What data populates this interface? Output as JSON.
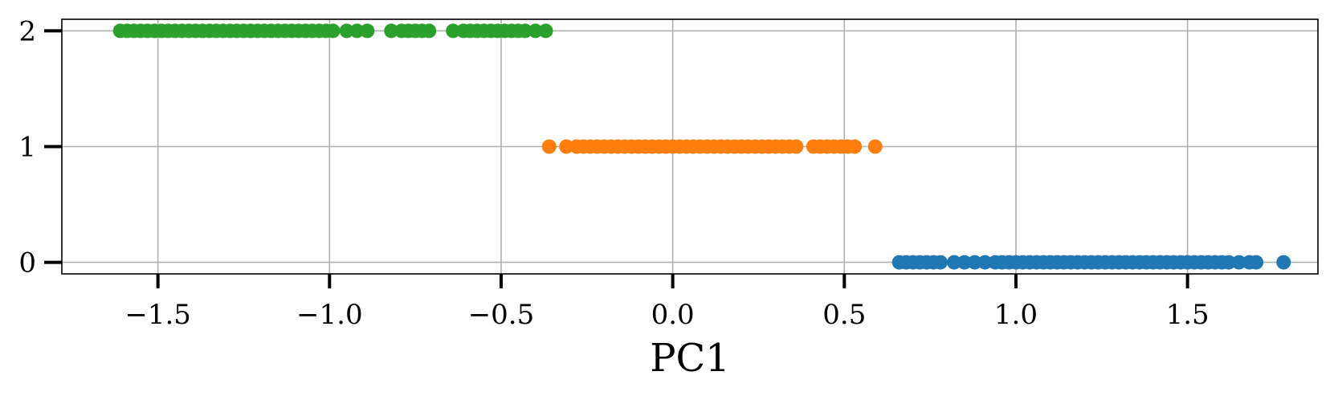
{
  "chart_data": {
    "type": "scatter",
    "title": "",
    "xlabel": "PC1",
    "ylabel": "",
    "xlim": [
      -1.78,
      1.88
    ],
    "ylim": [
      -0.1,
      2.1
    ],
    "grid": true,
    "xticks": [
      -1.5,
      -1.0,
      -0.5,
      0.0,
      0.5,
      1.0,
      1.5
    ],
    "xtick_labels": [
      "−1.5",
      "−1.0",
      "−0.5",
      "0.0",
      "0.5",
      "1.0",
      "1.5"
    ],
    "yticks": [
      0,
      1,
      2
    ],
    "ytick_labels": [
      "0",
      "1",
      "2"
    ],
    "colors": [
      "#1f77b4",
      "#ff7f0e",
      "#2ca02c"
    ],
    "series": [
      {
        "y": 0,
        "color": "#1f77b4",
        "x": [
          0.66,
          0.68,
          0.7,
          0.72,
          0.74,
          0.76,
          0.78,
          0.82,
          0.85,
          0.88,
          0.91,
          0.94,
          0.96,
          0.98,
          1.0,
          1.02,
          1.04,
          1.06,
          1.08,
          1.1,
          1.12,
          1.14,
          1.16,
          1.18,
          1.2,
          1.22,
          1.24,
          1.26,
          1.28,
          1.3,
          1.32,
          1.34,
          1.36,
          1.38,
          1.4,
          1.42,
          1.44,
          1.46,
          1.48,
          1.5,
          1.52,
          1.54,
          1.56,
          1.58,
          1.6,
          1.62,
          1.65,
          1.68,
          1.7,
          1.78
        ]
      },
      {
        "y": 1,
        "color": "#ff7f0e",
        "x": [
          -0.36,
          -0.31,
          -0.28,
          -0.26,
          -0.24,
          -0.22,
          -0.2,
          -0.18,
          -0.16,
          -0.14,
          -0.12,
          -0.1,
          -0.08,
          -0.06,
          -0.04,
          -0.02,
          0.0,
          0.02,
          0.04,
          0.06,
          0.08,
          0.1,
          0.12,
          0.14,
          0.16,
          0.18,
          0.2,
          0.22,
          0.24,
          0.26,
          0.28,
          0.3,
          0.32,
          0.34,
          0.36,
          0.41,
          0.43,
          0.45,
          0.47,
          0.49,
          0.51,
          0.53,
          0.59
        ]
      },
      {
        "y": 2,
        "color": "#2ca02c",
        "x": [
          -1.61,
          -1.59,
          -1.57,
          -1.55,
          -1.53,
          -1.51,
          -1.49,
          -1.47,
          -1.45,
          -1.43,
          -1.41,
          -1.39,
          -1.37,
          -1.35,
          -1.33,
          -1.31,
          -1.29,
          -1.27,
          -1.25,
          -1.23,
          -1.21,
          -1.19,
          -1.17,
          -1.15,
          -1.13,
          -1.11,
          -1.09,
          -1.07,
          -1.05,
          -1.03,
          -1.01,
          -0.99,
          -0.95,
          -0.92,
          -0.89,
          -0.82,
          -0.79,
          -0.77,
          -0.75,
          -0.73,
          -0.71,
          -0.64,
          -0.61,
          -0.59,
          -0.57,
          -0.55,
          -0.53,
          -0.51,
          -0.49,
          -0.47,
          -0.45,
          -0.43,
          -0.4,
          -0.37
        ]
      }
    ]
  }
}
